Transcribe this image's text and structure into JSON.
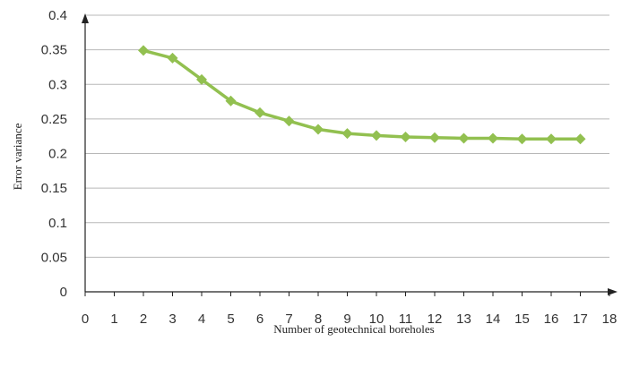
{
  "chart_data": {
    "type": "line",
    "title": "",
    "xlabel": "Number of geotechnical boreholes",
    "ylabel": "Error variance",
    "xlim": [
      0,
      18
    ],
    "ylim": [
      0,
      0.4
    ],
    "x_ticks": [
      "0",
      "1",
      "2",
      "3",
      "4",
      "5",
      "6",
      "7",
      "8",
      "9",
      "10",
      "11",
      "12",
      "13",
      "14",
      "15",
      "16",
      "17",
      "18"
    ],
    "y_ticks": [
      "0",
      "0.05",
      "0.1",
      "0.15",
      "0.2",
      "0.25",
      "0.3",
      "0.35",
      "0.4"
    ],
    "grid": "horizontal",
    "legend": "none",
    "series": [
      {
        "color": "#92c050",
        "marker": "diamond",
        "x": [
          2,
          3,
          4,
          5,
          6,
          7,
          8,
          9,
          10,
          11,
          12,
          13,
          14,
          15,
          16,
          17
        ],
        "y": [
          0.349,
          0.338,
          0.307,
          0.276,
          0.259,
          0.247,
          0.235,
          0.229,
          0.226,
          0.224,
          0.223,
          0.222,
          0.222,
          0.221,
          0.221,
          0.221
        ]
      }
    ]
  }
}
